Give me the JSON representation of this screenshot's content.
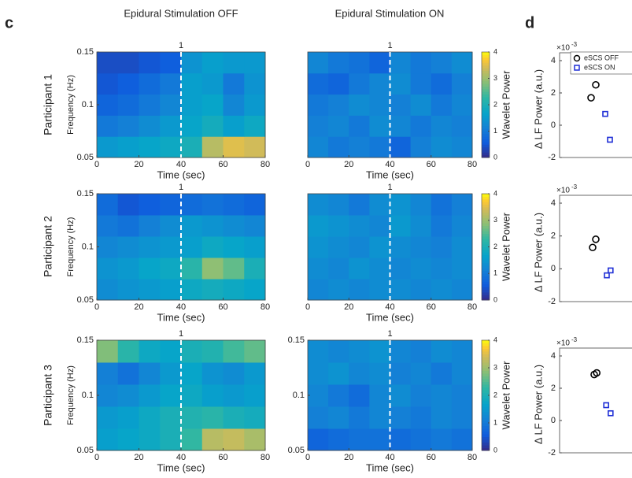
{
  "figure": {
    "panels": [
      "c",
      "d"
    ],
    "columns": [
      "Epidural Stimulation OFF",
      "Epidural Stimulation ON"
    ],
    "rows": [
      "Participant 1",
      "Participant 2",
      "Participant 3"
    ]
  },
  "chart_data": [
    {
      "type": "heatmap",
      "x_label": "Time (sec)",
      "y_label": "Frequency (Hz)",
      "xlim": [
        0,
        80
      ],
      "xticks": [
        0,
        20,
        40,
        60,
        80
      ],
      "ylim": [
        0.05,
        0.15
      ],
      "yticks": [
        0.05,
        0.1,
        0.15
      ],
      "x_bins": [
        0,
        10,
        20,
        30,
        40,
        50,
        60,
        70,
        80
      ],
      "y_bins": [
        0.05,
        0.07,
        0.09,
        0.11,
        0.13,
        0.15
      ],
      "clim": [
        0,
        4
      ],
      "colormap": "parula",
      "vline": {
        "x": 40,
        "label": "1"
      },
      "z": [
        [
          1.5,
          1.6,
          1.7,
          1.8,
          2.0,
          3.2,
          3.5,
          3.4
        ],
        [
          1.0,
          1.1,
          1.3,
          1.5,
          1.7,
          1.9,
          1.6,
          1.8
        ],
        [
          0.7,
          0.8,
          1.0,
          1.2,
          1.6,
          1.7,
          1.2,
          1.5
        ],
        [
          0.5,
          0.6,
          0.8,
          1.0,
          1.6,
          1.5,
          1.0,
          1.4
        ],
        [
          0.4,
          0.4,
          0.5,
          0.6,
          1.4,
          1.6,
          1.5,
          1.5
        ]
      ]
    },
    {
      "type": "heatmap",
      "x_label": "Time (sec)",
      "xlim": [
        0,
        80
      ],
      "xticks": [
        0,
        20,
        40,
        60,
        80
      ],
      "ylim": [
        0.05,
        0.15
      ],
      "x_bins": [
        0,
        10,
        20,
        30,
        40,
        50,
        60,
        70,
        80
      ],
      "y_bins": [
        0.05,
        0.07,
        0.09,
        0.11,
        0.13,
        0.15
      ],
      "clim": [
        0,
        4
      ],
      "colormap": "parula",
      "vline": {
        "x": 40,
        "label": "1"
      },
      "colorbar": {
        "label": "Wavelet Power",
        "ticks": [
          0,
          1,
          2,
          3,
          4
        ]
      },
      "z": [
        [
          1.2,
          1.0,
          1.1,
          1.0,
          0.7,
          1.1,
          1.3,
          1.2
        ],
        [
          1.1,
          1.2,
          1.0,
          1.3,
          1.2,
          1.0,
          1.2,
          1.1
        ],
        [
          1.0,
          1.1,
          1.3,
          1.2,
          1.1,
          1.3,
          1.0,
          1.2
        ],
        [
          0.8,
          0.7,
          1.0,
          1.2,
          1.3,
          1.0,
          0.8,
          1.1
        ],
        [
          1.2,
          1.0,
          0.9,
          0.7,
          1.2,
          1.0,
          1.1,
          1.3
        ]
      ]
    },
    {
      "type": "heatmap",
      "x_label": "Time (sec)",
      "y_label": "Frequency (Hz)",
      "xlim": [
        0,
        80
      ],
      "xticks": [
        0,
        20,
        40,
        60,
        80
      ],
      "ylim": [
        0.05,
        0.15
      ],
      "yticks": [
        0.05,
        0.1,
        0.15
      ],
      "x_bins": [
        0,
        10,
        20,
        30,
        40,
        50,
        60,
        70,
        80
      ],
      "y_bins": [
        0.05,
        0.07,
        0.09,
        0.11,
        0.13,
        0.15
      ],
      "clim": [
        0,
        4
      ],
      "colormap": "parula",
      "vline": {
        "x": 40,
        "label": "1"
      },
      "z": [
        [
          1.3,
          1.4,
          1.5,
          1.6,
          1.8,
          1.9,
          1.8,
          1.7
        ],
        [
          1.4,
          1.5,
          1.7,
          1.8,
          2.2,
          2.9,
          2.6,
          2.0
        ],
        [
          1.2,
          1.3,
          1.4,
          1.5,
          1.6,
          1.8,
          1.7,
          1.6
        ],
        [
          1.0,
          0.9,
          1.1,
          1.3,
          1.5,
          1.4,
          1.3,
          1.2
        ],
        [
          0.8,
          0.5,
          0.6,
          0.7,
          0.8,
          0.9,
          0.8,
          0.7
        ]
      ]
    },
    {
      "type": "heatmap",
      "x_label": "Time (sec)",
      "xlim": [
        0,
        80
      ],
      "xticks": [
        0,
        20,
        40,
        60,
        80
      ],
      "ylim": [
        0.05,
        0.15
      ],
      "x_bins": [
        0,
        10,
        20,
        30,
        40,
        50,
        60,
        70,
        80
      ],
      "y_bins": [
        0.05,
        0.07,
        0.09,
        0.11,
        0.13,
        0.15
      ],
      "clim": [
        0,
        4
      ],
      "colormap": "parula",
      "vline": {
        "x": 40,
        "label": "1"
      },
      "colorbar": {
        "label": "Wavelet Power",
        "ticks": [
          0,
          1,
          2,
          3,
          4
        ]
      },
      "z": [
        [
          1.2,
          1.3,
          1.2,
          1.3,
          1.3,
          1.2,
          1.3,
          1.2
        ],
        [
          1.3,
          1.2,
          1.4,
          1.3,
          1.2,
          1.3,
          1.2,
          1.3
        ],
        [
          1.4,
          1.3,
          1.2,
          1.4,
          1.3,
          1.2,
          1.1,
          1.3
        ],
        [
          1.5,
          1.4,
          1.3,
          1.2,
          1.5,
          1.3,
          1.0,
          1.2
        ],
        [
          1.3,
          1.2,
          1.0,
          1.3,
          1.4,
          1.2,
          0.9,
          1.1
        ]
      ]
    },
    {
      "type": "heatmap",
      "x_label": "Time (sec)",
      "y_label": "Frequency (Hz)",
      "xlim": [
        0,
        80
      ],
      "xticks": [
        0,
        20,
        40,
        60,
        80
      ],
      "ylim": [
        0.05,
        0.15
      ],
      "yticks": [
        0.05,
        0.1,
        0.15
      ],
      "x_bins": [
        0,
        10,
        20,
        30,
        40,
        50,
        60,
        70,
        80
      ],
      "y_bins": [
        0.05,
        0.07,
        0.09,
        0.11,
        0.13,
        0.15
      ],
      "clim": [
        0,
        4
      ],
      "colormap": "parula",
      "vline": {
        "x": 40,
        "label": "1"
      },
      "z": [
        [
          1.6,
          1.7,
          1.8,
          2.0,
          2.3,
          3.2,
          3.3,
          3.1
        ],
        [
          1.5,
          1.6,
          1.8,
          2.0,
          2.1,
          2.2,
          2.0,
          1.9
        ],
        [
          1.2,
          1.3,
          1.5,
          1.7,
          1.8,
          1.6,
          1.5,
          1.6
        ],
        [
          1.1,
          0.9,
          1.2,
          1.5,
          1.7,
          1.4,
          1.3,
          1.5
        ],
        [
          2.8,
          2.2,
          1.8,
          1.7,
          2.0,
          2.1,
          2.4,
          2.6
        ]
      ]
    },
    {
      "type": "heatmap",
      "x_label": "Time (sec)",
      "xlim": [
        0,
        80
      ],
      "xticks": [
        0,
        20,
        40,
        60,
        80
      ],
      "ylim": [
        0.05,
        0.15
      ],
      "yticks": [
        0.05,
        0.1,
        0.15
      ],
      "x_bins": [
        0,
        10,
        20,
        30,
        40,
        50,
        60,
        70,
        80
      ],
      "y_bins": [
        0.05,
        0.07,
        0.09,
        0.11,
        0.13,
        0.15
      ],
      "clim": [
        0,
        4
      ],
      "colormap": "parula",
      "vline": {
        "x": 40,
        "label": "1"
      },
      "colorbar": {
        "label": "Wavelet Power",
        "ticks": [
          0,
          1,
          2,
          3,
          4
        ]
      },
      "z": [
        [
          0.7,
          0.8,
          0.9,
          0.9,
          0.8,
          0.9,
          1.0,
          0.9
        ],
        [
          1.1,
          1.2,
          1.0,
          1.2,
          1.1,
          1.0,
          1.2,
          1.1
        ],
        [
          1.2,
          1.0,
          0.8,
          1.2,
          1.3,
          1.1,
          1.2,
          1.1
        ],
        [
          1.3,
          1.4,
          1.2,
          1.3,
          1.1,
          1.2,
          1.0,
          1.2
        ],
        [
          1.3,
          1.2,
          1.3,
          1.4,
          1.2,
          1.1,
          1.3,
          1.2
        ]
      ]
    },
    {
      "type": "scatter",
      "y_label": "Δ LF Power (a.u.)",
      "y_multiplier_base": "×10",
      "y_multiplier_exponent": "-3",
      "xlim": [
        0,
        4
      ],
      "ylim": [
        -2,
        4
      ],
      "yticks": [
        -2,
        0,
        2,
        4
      ],
      "legend": "upper right",
      "series": [
        {
          "name": "eSCS OFF",
          "color": "#000000",
          "marker": "circle",
          "x": [
            1.0,
            1.15
          ],
          "values": [
            1.7,
            2.5
          ]
        },
        {
          "name": "eSCS ON",
          "color": "#1f2fd6",
          "marker": "square",
          "x": [
            1.45,
            1.6
          ],
          "values": [
            0.7,
            -0.9
          ]
        }
      ]
    },
    {
      "type": "scatter",
      "y_label": "Δ LF Power (a.u.)",
      "y_multiplier_base": "×10",
      "y_multiplier_exponent": "-3",
      "xlim": [
        0,
        4
      ],
      "ylim": [
        -2,
        4
      ],
      "yticks": [
        -2,
        0,
        2,
        4
      ],
      "series": [
        {
          "color": "#000000",
          "marker": "circle",
          "x": [
            1.05,
            1.15
          ],
          "values": [
            1.3,
            1.8
          ]
        },
        {
          "color": "#1f2fd6",
          "marker": "square",
          "x": [
            1.5,
            1.62
          ],
          "values": [
            -0.4,
            -0.1
          ]
        }
      ]
    },
    {
      "type": "scatter",
      "y_label": "Δ LF Power (a.u.)",
      "y_multiplier_base": "×10",
      "y_multiplier_exponent": "-3",
      "xlim": [
        0,
        4
      ],
      "ylim": [
        -2,
        4
      ],
      "yticks": [
        -2,
        0,
        2,
        4
      ],
      "series": [
        {
          "color": "#000000",
          "marker": "circle",
          "x": [
            1.1,
            1.18
          ],
          "values": [
            2.85,
            2.95
          ]
        },
        {
          "color": "#1f2fd6",
          "marker": "square",
          "x": [
            1.48,
            1.62
          ],
          "values": [
            0.95,
            0.45
          ]
        }
      ]
    }
  ]
}
